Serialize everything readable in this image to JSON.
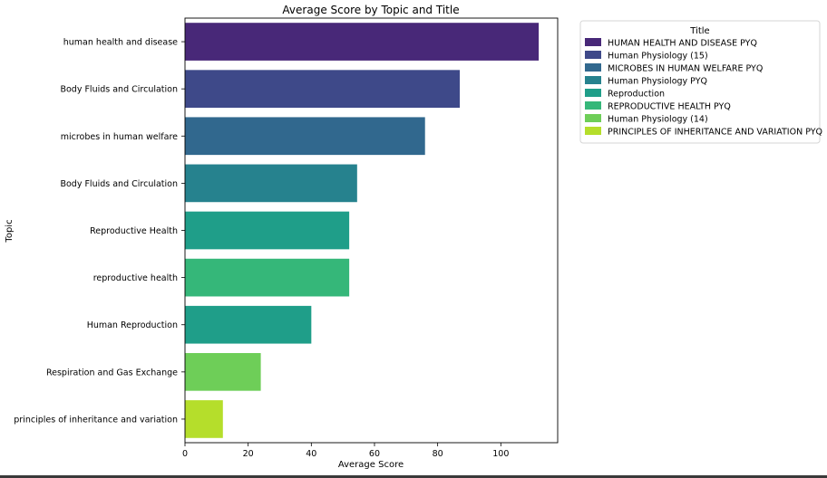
{
  "chart_data": {
    "type": "bar",
    "orientation": "horizontal",
    "title": "Average Score by Topic and Title",
    "xlabel": "Average Score",
    "ylabel": "Topic",
    "xlim": [
      0,
      118
    ],
    "xticks": [
      0,
      20,
      40,
      60,
      80,
      100
    ],
    "grid": false,
    "legend_title": "Title",
    "legend_position": "outside-right",
    "legend": [
      {
        "label": "HUMAN HEALTH AND DISEASE PYQ",
        "color": "#482878"
      },
      {
        "label": "Human Physiology (15)",
        "color": "#3e4989"
      },
      {
        "label": "MICROBES IN HUMAN WELFARE  PYQ",
        "color": "#31688e"
      },
      {
        "label": "Human Physiology PYQ",
        "color": "#26828e"
      },
      {
        "label": "Reproduction",
        "color": "#1f9e89"
      },
      {
        "label": "REPRODUCTIVE HEALTH PYQ",
        "color": "#35b779"
      },
      {
        "label": "Human Physiology (14)",
        "color": "#6ece58"
      },
      {
        "label": "PRINCIPLES OF INHERITANCE AND VARIATION PYQ",
        "color": "#b5de2b"
      }
    ],
    "bars": [
      {
        "topic": "human health and disease",
        "title": "HUMAN HEALTH AND DISEASE PYQ",
        "value": 112,
        "color": "#482878"
      },
      {
        "topic": "Body Fluids and Circulation",
        "title": "Human Physiology (15)",
        "value": 87,
        "color": "#3e4989"
      },
      {
        "topic": "microbes in human welfare",
        "title": "MICROBES IN HUMAN WELFARE  PYQ",
        "value": 76,
        "color": "#31688e"
      },
      {
        "topic": "Body Fluids and Circulation",
        "title": "Human Physiology PYQ",
        "value": 54.5,
        "color": "#26828e"
      },
      {
        "topic": "Reproductive Health",
        "title": "Reproduction",
        "value": 52,
        "color": "#1f9e89"
      },
      {
        "topic": "reproductive health",
        "title": "REPRODUCTIVE HEALTH PYQ",
        "value": 52,
        "color": "#35b779"
      },
      {
        "topic": "Human Reproduction",
        "title": "Reproduction",
        "value": 40,
        "color": "#1f9e89"
      },
      {
        "topic": "Respiration and Gas Exchange",
        "title": "Human Physiology (14)",
        "value": 24,
        "color": "#6ece58"
      },
      {
        "topic": "principles of inheritance and variation",
        "title": "PRINCIPLES OF INHERITANCE AND VARIATION PYQ",
        "value": 12,
        "color": "#b5de2b"
      }
    ]
  }
}
